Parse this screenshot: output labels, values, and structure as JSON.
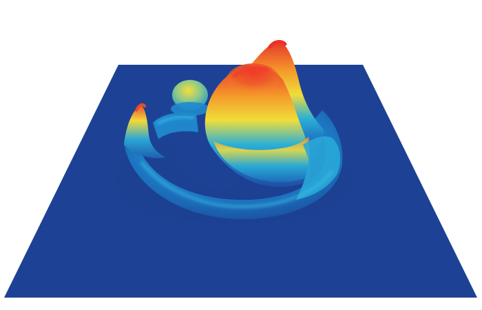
{
  "figure": {
    "type": "3d-surface-render",
    "colormap": "jet",
    "colors": {
      "background": "#ffffff",
      "plane": "#1d4295",
      "low": "#1e63b5",
      "mid_low": "#2aa8d8",
      "mid": "#f2e03a",
      "mid_high": "#f39a2a",
      "high": "#e8322a"
    }
  }
}
